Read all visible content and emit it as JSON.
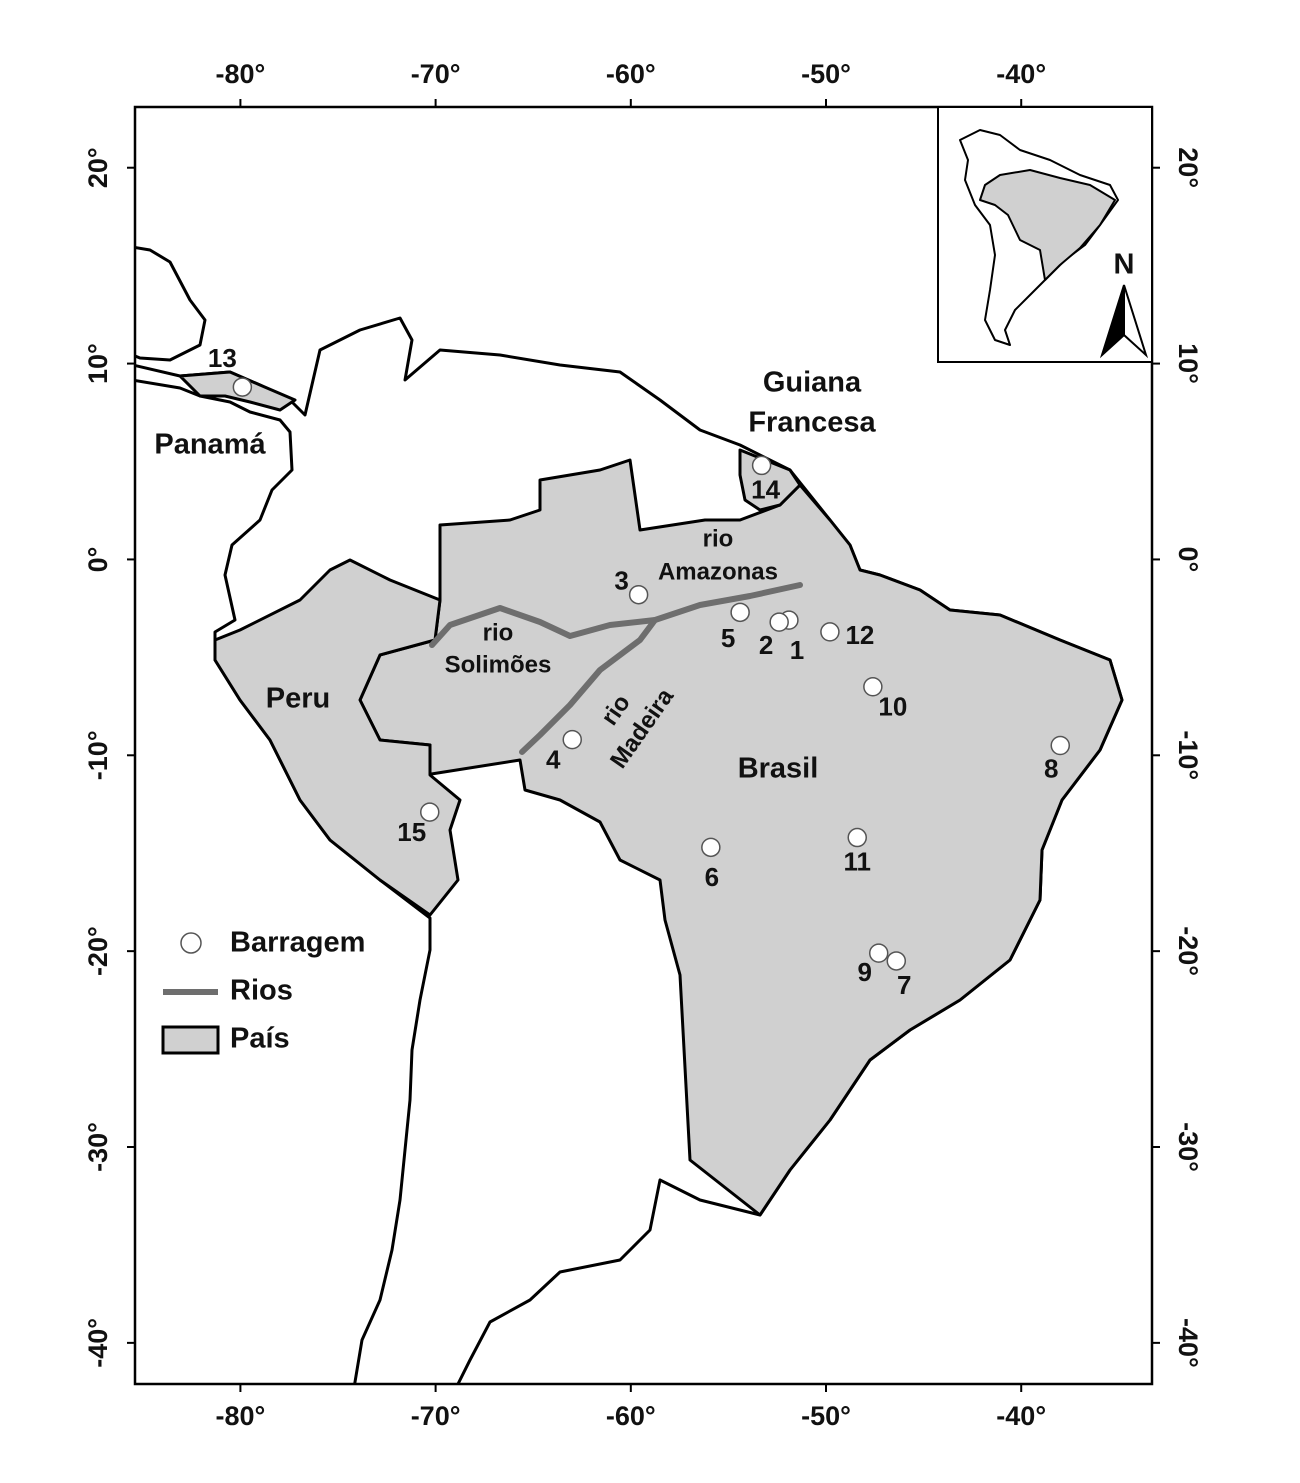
{
  "map": {
    "xlim": [
      -85.4,
      -33.3
    ],
    "ylim": [
      -42.1,
      23.1
    ],
    "xticks": [
      {
        "value": -80,
        "label": "-80°"
      },
      {
        "value": -70,
        "label": "-70°"
      },
      {
        "value": -60,
        "label": "-60°"
      },
      {
        "value": -50,
        "label": "-50°"
      },
      {
        "value": -40,
        "label": "-40°"
      }
    ],
    "yticks": [
      {
        "value": 20,
        "label": "20°"
      },
      {
        "value": 10,
        "label": "10°"
      },
      {
        "value": 0,
        "label": "0°"
      },
      {
        "value": -10,
        "label": "-10°"
      },
      {
        "value": -20,
        "label": "-20°"
      },
      {
        "value": -30,
        "label": "-30°"
      },
      {
        "value": -40,
        "label": "-40°"
      }
    ],
    "dams": [
      {
        "label": "1",
        "lon": -51.9,
        "lat": -3.1
      },
      {
        "label": "2",
        "lon": -52.4,
        "lat": -3.2
      },
      {
        "label": "3",
        "lon": -59.6,
        "lat": -1.8
      },
      {
        "label": "4",
        "lon": -63.0,
        "lat": -9.2
      },
      {
        "label": "5",
        "lon": -54.4,
        "lat": -2.7
      },
      {
        "label": "6",
        "lon": -55.9,
        "lat": -14.7
      },
      {
        "label": "7",
        "lon": -46.4,
        "lat": -20.5
      },
      {
        "label": "8",
        "lon": -38.0,
        "lat": -9.5
      },
      {
        "label": "9",
        "lon": -47.3,
        "lat": -20.1
      },
      {
        "label": "10",
        "lon": -47.6,
        "lat": -6.5
      },
      {
        "label": "11",
        "lon": -48.4,
        "lat": -14.2
      },
      {
        "label": "12",
        "lon": -49.8,
        "lat": -3.7
      },
      {
        "label": "13",
        "lon": -79.9,
        "lat": 8.8
      },
      {
        "label": "14",
        "lon": -53.3,
        "lat": 4.8
      },
      {
        "label": "15",
        "lon": -70.3,
        "lat": -12.9
      }
    ],
    "countries": {
      "panama": "Panamá",
      "peru": "Peru",
      "brasil": "Brasil",
      "guiana": [
        "Guiana",
        "Francesa"
      ]
    },
    "rivers": {
      "amazonas": [
        "rio",
        "Amazonas"
      ],
      "solimoes": [
        "rio",
        "Solimões"
      ],
      "madeira": [
        "rio",
        "Madeira"
      ]
    },
    "legend": [
      "Barragem",
      "Rios",
      "País"
    ],
    "north": "N"
  }
}
